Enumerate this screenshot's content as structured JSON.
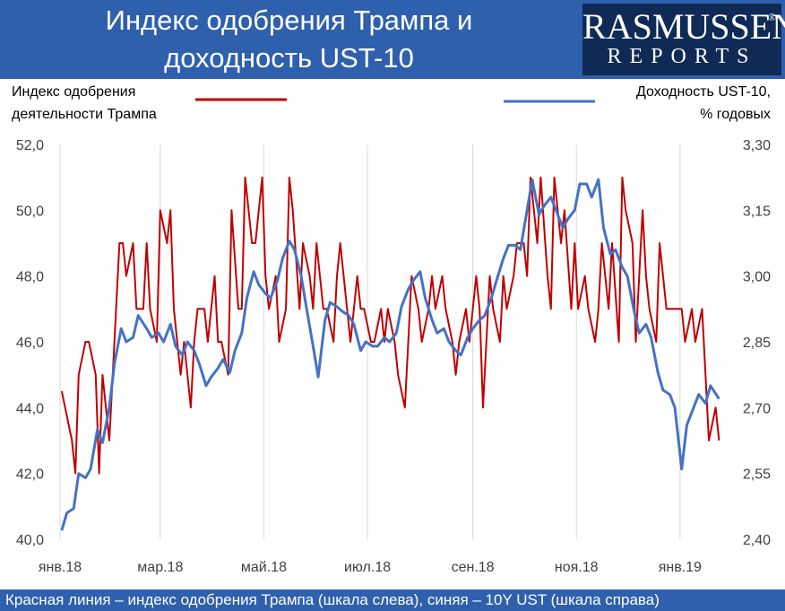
{
  "header": {
    "title_line1": "Индекс одобрения Трампа и",
    "title_line2": "доходность UST-10"
  },
  "logo": {
    "top": "RASMUSSEN",
    "registered": "®",
    "bottom": "REPORTS"
  },
  "footer": {
    "text": "Красная линия – индекс одобрения Трампа (шкала слева), синяя – 10Y UST (шкала справа)"
  },
  "colors": {
    "red": "#c00000",
    "blue": "#4472c4",
    "header": "#2f60ad"
  },
  "chart_data": {
    "type": "line",
    "left_label_line1": "Индекс одобрения",
    "left_label_line2": "деятельности Трампа",
    "right_label_line1": "Доходность UST-10,",
    "right_label_line2": "% годовых",
    "y_left_range": [
      40,
      52
    ],
    "y_right_range": [
      2.4,
      3.3
    ],
    "y_left_ticks": [
      "40,0",
      "42,0",
      "44,0",
      "46,0",
      "48,0",
      "50,0",
      "52,0"
    ],
    "y_right_ticks": [
      "2,40",
      "2,55",
      "2,70",
      "2,85",
      "3,00",
      "3,15",
      "3,30"
    ],
    "x_ticks": [
      "янв.18",
      "мар.18",
      "май.18",
      "июл.18",
      "сен.18",
      "ноя.18",
      "янв.19"
    ],
    "x_range": [
      "2018-01-01",
      "2019-01-28"
    ],
    "grid": "vertical",
    "series": [
      {
        "key": "approval",
        "axis": "left",
        "color": "#c00000",
        "x": [
          "2018-01-02",
          "2018-01-04",
          "2018-01-08",
          "2018-01-10",
          "2018-01-12",
          "2018-01-16",
          "2018-01-18",
          "2018-01-22",
          "2018-01-24",
          "2018-01-26",
          "2018-01-30",
          "2018-02-01",
          "2018-02-05",
          "2018-02-07",
          "2018-02-09",
          "2018-02-13",
          "2018-02-15",
          "2018-02-19",
          "2018-02-21",
          "2018-02-23",
          "2018-02-27",
          "2018-03-01",
          "2018-03-05",
          "2018-03-07",
          "2018-03-09",
          "2018-03-13",
          "2018-03-15",
          "2018-03-19",
          "2018-03-21",
          "2018-03-23",
          "2018-03-27",
          "2018-03-29",
          "2018-04-02",
          "2018-04-04",
          "2018-04-06",
          "2018-04-10",
          "2018-04-12",
          "2018-04-16",
          "2018-04-18",
          "2018-04-20",
          "2018-04-24",
          "2018-04-26",
          "2018-04-30",
          "2018-05-02",
          "2018-05-04",
          "2018-05-08",
          "2018-05-10",
          "2018-05-14",
          "2018-05-16",
          "2018-05-18",
          "2018-05-22",
          "2018-05-24",
          "2018-05-28",
          "2018-05-30",
          "2018-06-01",
          "2018-06-05",
          "2018-06-07",
          "2018-06-11",
          "2018-06-13",
          "2018-06-15",
          "2018-06-19",
          "2018-06-21",
          "2018-06-25",
          "2018-06-27",
          "2018-06-29",
          "2018-07-03",
          "2018-07-05",
          "2018-07-09",
          "2018-07-11",
          "2018-07-13",
          "2018-07-17",
          "2018-07-19",
          "2018-07-23",
          "2018-07-25",
          "2018-07-27",
          "2018-07-31",
          "2018-08-02",
          "2018-08-06",
          "2018-08-08",
          "2018-08-10",
          "2018-08-14",
          "2018-08-16",
          "2018-08-20",
          "2018-08-22",
          "2018-08-24",
          "2018-08-28",
          "2018-08-30",
          "2018-09-03",
          "2018-09-05",
          "2018-09-07",
          "2018-09-11",
          "2018-09-13",
          "2018-09-17",
          "2018-09-19",
          "2018-09-21",
          "2018-09-25",
          "2018-09-27",
          "2018-10-01",
          "2018-10-03",
          "2018-10-05",
          "2018-10-09",
          "2018-10-11",
          "2018-10-15",
          "2018-10-17",
          "2018-10-19",
          "2018-10-23",
          "2018-10-25",
          "2018-10-29",
          "2018-10-31",
          "2018-11-02",
          "2018-11-06",
          "2018-11-08",
          "2018-11-12",
          "2018-11-14",
          "2018-11-16",
          "2018-11-20",
          "2018-11-22",
          "2018-11-26",
          "2018-11-28",
          "2018-11-30",
          "2018-12-04",
          "2018-12-06",
          "2018-12-10",
          "2018-12-12",
          "2018-12-14",
          "2018-12-18",
          "2018-12-20",
          "2018-12-24",
          "2018-12-26",
          "2018-12-28",
          "2019-01-02",
          "2019-01-04",
          "2019-01-08",
          "2019-01-10",
          "2019-01-14",
          "2019-01-16",
          "2019-01-18",
          "2019-01-22",
          "2019-01-24"
        ],
        "values": [
          44.5,
          44,
          43,
          42,
          45,
          46,
          46,
          45,
          42,
          45,
          43,
          45,
          49,
          49,
          48,
          49,
          47,
          47,
          49,
          47,
          46,
          50,
          49,
          50,
          47,
          45,
          46,
          44,
          46,
          47,
          47,
          46,
          48,
          46,
          46,
          45,
          50,
          47,
          47,
          51,
          49,
          49,
          51,
          48,
          47,
          48,
          46,
          47,
          51,
          50,
          47,
          49,
          48,
          47,
          49,
          47,
          47,
          46,
          48,
          49,
          47,
          46,
          48,
          47,
          47,
          46,
          46,
          47,
          46,
          47,
          46,
          45,
          44,
          46,
          48,
          47,
          46,
          47,
          48,
          47,
          48,
          47,
          46,
          45,
          46,
          47,
          46,
          48,
          47,
          44,
          48,
          47,
          46,
          48,
          47,
          48,
          49,
          49,
          48,
          51,
          49,
          51,
          48,
          47,
          51,
          49,
          50,
          47,
          49,
          47,
          48,
          47,
          46,
          47,
          49,
          47,
          49,
          46,
          51,
          50,
          49,
          46,
          50,
          48,
          47,
          46,
          49,
          47,
          47,
          47,
          47,
          46,
          47,
          46,
          47,
          45,
          43,
          44,
          43
        ],
        "values_note": ""
      },
      {
        "key": "yield",
        "axis": "right",
        "color": "#4472c4",
        "x": [
          "2018-01-02",
          "2018-01-05",
          "2018-01-09",
          "2018-01-12",
          "2018-01-16",
          "2018-01-19",
          "2018-01-23",
          "2018-01-26",
          "2018-01-30",
          "2018-02-02",
          "2018-02-06",
          "2018-02-09",
          "2018-02-13",
          "2018-02-16",
          "2018-02-21",
          "2018-02-24",
          "2018-02-28",
          "2018-03-03",
          "2018-03-07",
          "2018-03-10",
          "2018-03-14",
          "2018-03-17",
          "2018-03-21",
          "2018-03-24",
          "2018-03-28",
          "2018-03-31",
          "2018-04-04",
          "2018-04-07",
          "2018-04-11",
          "2018-04-14",
          "2018-04-18",
          "2018-04-21",
          "2018-04-25",
          "2018-04-28",
          "2018-05-02",
          "2018-05-05",
          "2018-05-09",
          "2018-05-12",
          "2018-05-16",
          "2018-05-19",
          "2018-05-23",
          "2018-05-26",
          "2018-05-30",
          "2018-06-02",
          "2018-06-06",
          "2018-06-09",
          "2018-06-13",
          "2018-06-16",
          "2018-06-20",
          "2018-06-23",
          "2018-06-27",
          "2018-06-30",
          "2018-07-04",
          "2018-07-07",
          "2018-07-11",
          "2018-07-14",
          "2018-07-18",
          "2018-07-21",
          "2018-07-25",
          "2018-07-28",
          "2018-08-01",
          "2018-08-04",
          "2018-08-08",
          "2018-08-11",
          "2018-08-15",
          "2018-08-18",
          "2018-08-22",
          "2018-08-25",
          "2018-08-29",
          "2018-09-01",
          "2018-09-05",
          "2018-09-08",
          "2018-09-12",
          "2018-09-15",
          "2018-09-19",
          "2018-09-22",
          "2018-09-26",
          "2018-09-29",
          "2018-10-03",
          "2018-10-06",
          "2018-10-10",
          "2018-10-13",
          "2018-10-17",
          "2018-10-20",
          "2018-10-24",
          "2018-10-27",
          "2018-10-31",
          "2018-11-03",
          "2018-11-07",
          "2018-11-10",
          "2018-11-14",
          "2018-11-17",
          "2018-11-21",
          "2018-11-24",
          "2018-11-28",
          "2018-12-01",
          "2018-12-05",
          "2018-12-08",
          "2018-12-12",
          "2018-12-15",
          "2018-12-19",
          "2018-12-22",
          "2018-12-26",
          "2018-12-29",
          "2019-01-02",
          "2019-01-05",
          "2019-01-09",
          "2019-01-12",
          "2019-01-16",
          "2019-01-19",
          "2019-01-24"
        ],
        "values": [
          2.42,
          2.46,
          2.47,
          2.55,
          2.54,
          2.56,
          2.65,
          2.62,
          2.7,
          2.8,
          2.88,
          2.85,
          2.86,
          2.91,
          2.88,
          2.86,
          2.87,
          2.85,
          2.89,
          2.84,
          2.82,
          2.85,
          2.83,
          2.8,
          2.75,
          2.77,
          2.79,
          2.81,
          2.78,
          2.83,
          2.87,
          2.95,
          3.01,
          2.98,
          2.96,
          2.95,
          2.99,
          3.04,
          3.08,
          3.06,
          3.0,
          2.93,
          2.84,
          2.77,
          2.9,
          2.94,
          2.93,
          2.92,
          2.91,
          2.89,
          2.83,
          2.85,
          2.84,
          2.84,
          2.86,
          2.85,
          2.87,
          2.93,
          2.97,
          2.99,
          3.01,
          2.95,
          2.9,
          2.87,
          2.88,
          2.85,
          2.83,
          2.82,
          2.86,
          2.88,
          2.9,
          2.91,
          2.95,
          2.99,
          3.04,
          3.07,
          3.07,
          3.06,
          3.15,
          3.22,
          3.14,
          3.16,
          3.18,
          3.15,
          3.11,
          3.13,
          3.15,
          3.21,
          3.21,
          3.18,
          3.22,
          3.11,
          3.05,
          3.06,
          3.02,
          3.0,
          2.92,
          2.87,
          2.89,
          2.86,
          2.78,
          2.74,
          2.73,
          2.7,
          2.56,
          2.66,
          2.7,
          2.73,
          2.71,
          2.75,
          2.72
        ]
      }
    ]
  }
}
